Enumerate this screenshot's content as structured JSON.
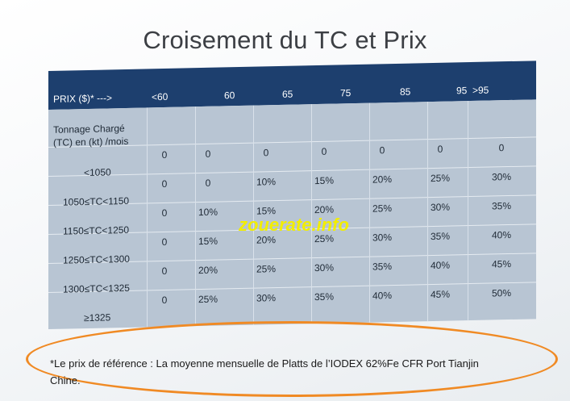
{
  "title": "Croisement du TC et Prix",
  "header": {
    "prix_label": "PRIX ($)* --->",
    "columns": [
      "<60",
      "60",
      "65",
      "75",
      "85",
      "95",
      ">95"
    ]
  },
  "row_header": {
    "line1": "Tonnage Chargé",
    "line2": "(TC) en (kt) /mois"
  },
  "rows": [
    {
      "label": "<1050",
      "values": [
        "0",
        "0",
        "0",
        "0",
        "0",
        "0",
        "0"
      ]
    },
    {
      "label": "1050≤TC<1150",
      "values": [
        "0",
        "0",
        "10%",
        "15%",
        "20%",
        "25%",
        "30%"
      ]
    },
    {
      "label": "1150≤TC<1250",
      "values": [
        "0",
        "10%",
        "15%",
        "20%",
        "25%",
        "30%",
        "35%"
      ]
    },
    {
      "label": "1250≤TC<1300",
      "values": [
        "0",
        "15%",
        "20%",
        "25%",
        "30%",
        "35%",
        "40%"
      ]
    },
    {
      "label": "1300≤TC<1325",
      "values": [
        "0",
        "20%",
        "25%",
        "30%",
        "35%",
        "40%",
        "45%"
      ]
    },
    {
      "label": "≥1325",
      "values": [
        "0",
        "25%",
        "30%",
        "35%",
        "40%",
        "45%",
        "50%"
      ]
    }
  ],
  "watermark": "zouerate.info",
  "footnote": {
    "line1": "*Le prix de référence : La moyenne mensuelle de Platts de l’IODEX 62%Fe CFR Port Tianjin",
    "line2": "Chine."
  },
  "colors": {
    "header_bg": "#1d3f6e",
    "table_bg": "#b8c5d3",
    "highlight_ellipse": "#f08a24",
    "watermark": "#f2ee00"
  }
}
